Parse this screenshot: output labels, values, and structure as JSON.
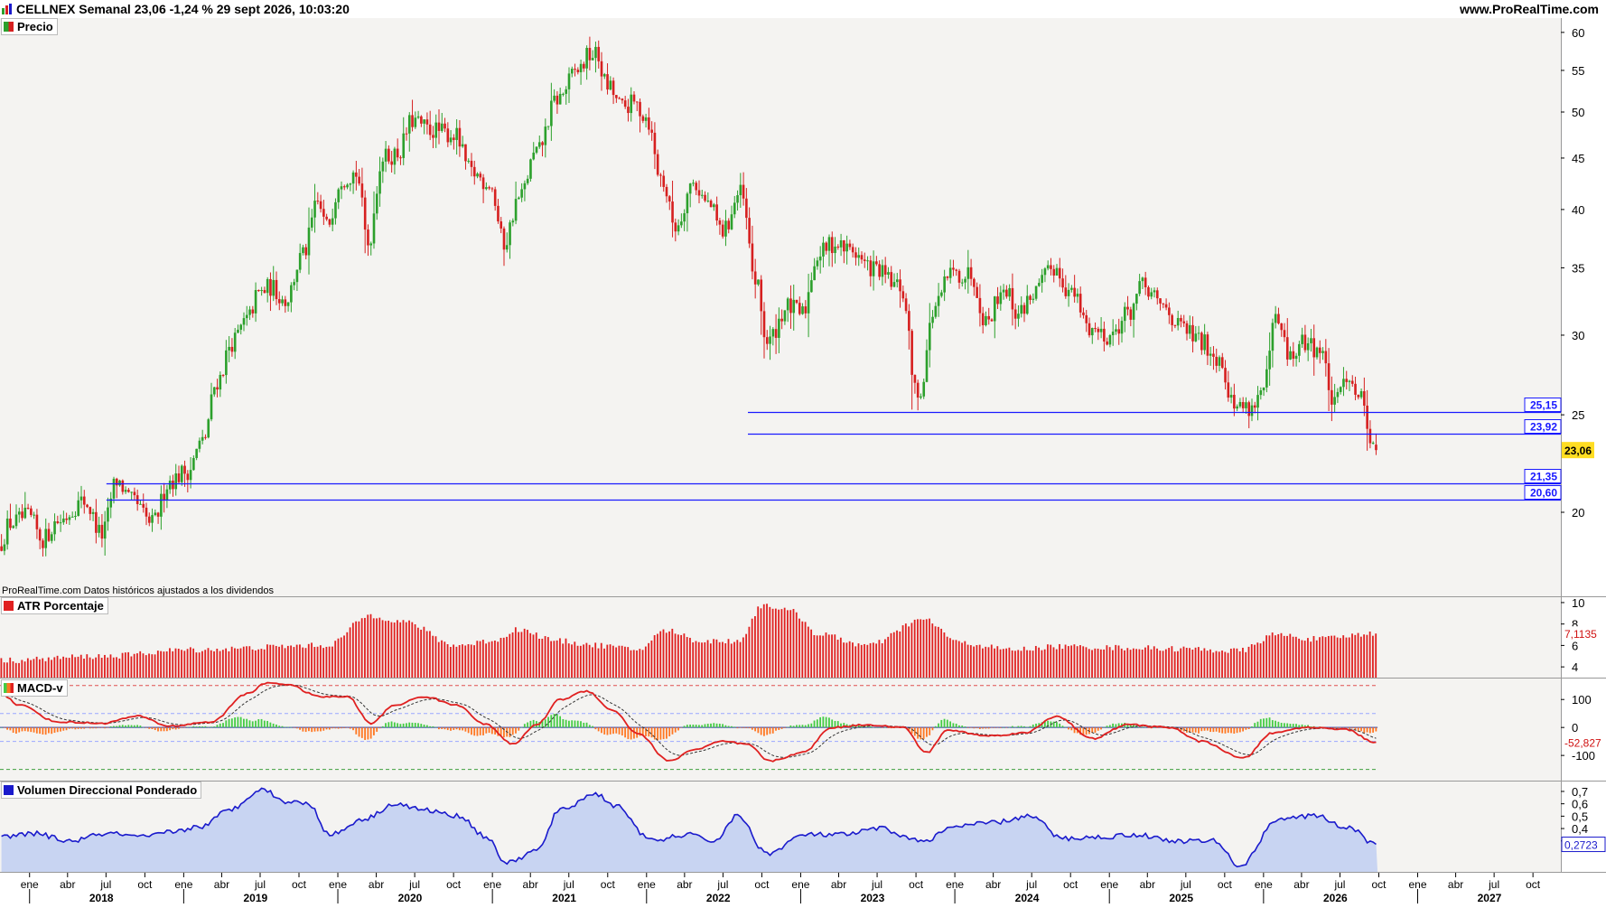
{
  "header": {
    "title": "CELLNEX Semanal 23,06 -1,24 % 29 sept 2026, 10:03:20",
    "site": "www.ProRealTime.com"
  },
  "source_note": "ProRealTime.com Datos históricos ajustados a los dividendos",
  "colors": {
    "up": "#2ca02c",
    "down": "#d62020",
    "level_line": "#1a1aff",
    "atr_bar": "#e02020",
    "macd_line": "#e02020",
    "signal_line": "#333333",
    "hist_pos": "#44cc44",
    "hist_neg": "#ff7722",
    "vdp_line": "#1a1acc",
    "vdp_fill": "#c8d4f2",
    "last_price_bg": "#ffdd22"
  },
  "chart_data": [
    {
      "panel": "price",
      "type": "candlestick",
      "title": "Precio",
      "y_scale": "log",
      "ylim": [
        16.5,
        62
      ],
      "y_ticks": [
        "60",
        "55",
        "50",
        "45",
        "40",
        "35",
        "30",
        "25",
        "20"
      ],
      "x_month_labels": [
        "ene",
        "abr",
        "jul",
        "oct",
        "ene",
        "abr",
        "jul",
        "oct",
        "ene",
        "abr",
        "jul",
        "oct",
        "ene",
        "abr",
        "jul",
        "oct",
        "ene",
        "abr",
        "jul",
        "oct",
        "ene",
        "abr",
        "jul",
        "oct",
        "ene",
        "abr",
        "jul",
        "oct",
        "ene",
        "abr",
        "jul",
        "oct",
        "ene",
        "abr",
        "jul",
        "oct",
        "ene",
        "abr",
        "jul",
        "oct"
      ],
      "x_year_labels": [
        "2018",
        "2019",
        "2020",
        "2021",
        "2022",
        "2023",
        "2024",
        "2025",
        "2026",
        "2027"
      ],
      "anchors": [
        [
          "2017-10-23",
          18.5
        ],
        [
          "2017-11-20",
          19.5
        ],
        [
          "2018-01-01",
          19.8
        ],
        [
          "2018-02-05",
          18.8
        ],
        [
          "2018-03-12",
          19.6
        ],
        [
          "2018-05-14",
          20.5
        ],
        [
          "2018-06-25",
          19.0
        ],
        [
          "2018-07-30",
          21.5
        ],
        [
          "2018-09-03",
          20.5
        ],
        [
          "2018-10-22",
          19.5
        ],
        [
          "2018-12-03",
          21.5
        ],
        [
          "2019-01-14",
          22.0
        ],
        [
          "2019-02-18",
          23.5
        ],
        [
          "2019-03-25",
          27.0
        ],
        [
          "2019-04-29",
          29.5
        ],
        [
          "2019-06-03",
          31.0
        ],
        [
          "2019-07-01",
          33.0
        ],
        [
          "2019-07-29",
          33.5
        ],
        [
          "2019-09-02",
          32.5
        ],
        [
          "2019-10-14",
          36.0
        ],
        [
          "2019-11-18",
          40.5
        ],
        [
          "2019-12-09",
          38.5
        ],
        [
          "2020-01-13",
          43.0
        ],
        [
          "2020-02-17",
          43.5
        ],
        [
          "2020-03-16",
          37.0
        ],
        [
          "2020-04-20",
          45.0
        ],
        [
          "2020-05-25",
          45.5
        ],
        [
          "2020-06-29",
          49.0
        ],
        [
          "2020-08-10",
          48.0
        ],
        [
          "2020-10-05",
          47.5
        ],
        [
          "2020-11-16",
          43.5
        ],
        [
          "2020-12-28",
          42.5
        ],
        [
          "2021-02-01",
          37.0
        ],
        [
          "2021-03-08",
          41.0
        ],
        [
          "2021-04-19",
          45.5
        ],
        [
          "2021-06-07",
          51.5
        ],
        [
          "2021-07-26",
          55.0
        ],
        [
          "2021-08-23",
          57.0
        ],
        [
          "2021-09-06",
          57.0
        ],
        [
          "2021-10-04",
          53.0
        ],
        [
          "2021-11-08",
          50.5
        ],
        [
          "2021-12-06",
          51.0
        ],
        [
          "2022-01-03",
          49.5
        ],
        [
          "2022-02-07",
          43.0
        ],
        [
          "2022-03-14",
          38.5
        ],
        [
          "2022-04-25",
          42.5
        ],
        [
          "2022-05-30",
          40.5
        ],
        [
          "2022-07-04",
          38.0
        ],
        [
          "2022-08-15",
          41.5
        ],
        [
          "2022-09-19",
          34.0
        ],
        [
          "2022-10-17",
          29.5
        ],
        [
          "2022-12-05",
          32.0
        ],
        [
          "2023-01-09",
          31.5
        ],
        [
          "2023-02-13",
          36.0
        ],
        [
          "2023-03-20",
          37.0
        ],
        [
          "2023-05-01",
          36.5
        ],
        [
          "2023-06-19",
          35.0
        ],
        [
          "2023-08-28",
          33.5
        ],
        [
          "2023-10-09",
          26.0
        ],
        [
          "2023-11-20",
          32.0
        ],
        [
          "2023-12-25",
          34.5
        ],
        [
          "2024-02-12",
          34.5
        ],
        [
          "2024-03-18",
          31.0
        ],
        [
          "2024-04-29",
          33.5
        ],
        [
          "2024-06-03",
          31.5
        ],
        [
          "2024-07-08",
          33.0
        ],
        [
          "2024-08-26",
          35.0
        ],
        [
          "2024-10-07",
          33.0
        ],
        [
          "2024-11-18",
          30.5
        ],
        [
          "2025-01-06",
          30.0
        ],
        [
          "2025-02-17",
          31.5
        ],
        [
          "2025-03-24",
          33.5
        ],
        [
          "2025-05-12",
          32.0
        ],
        [
          "2025-06-23",
          30.5
        ],
        [
          "2025-08-11",
          29.5
        ],
        [
          "2025-09-22",
          28.5
        ],
        [
          "2025-10-27",
          25.5
        ],
        [
          "2025-12-08",
          25.5
        ],
        [
          "2026-01-05",
          26.5
        ],
        [
          "2026-02-02",
          31.0
        ],
        [
          "2026-03-09",
          28.5
        ],
        [
          "2026-04-13",
          29.5
        ],
        [
          "2026-05-18",
          29.0
        ],
        [
          "2026-06-22",
          25.5
        ],
        [
          "2026-07-20",
          27.5
        ],
        [
          "2026-08-24",
          26.0
        ],
        [
          "2026-09-21",
          23.35
        ]
      ],
      "last_candle": {
        "open": 23.35,
        "high": 23.95,
        "low": 22.8,
        "close": 23.06
      },
      "price_levels": [
        {
          "value": 25.15,
          "label": "25,15",
          "from": "2022-08-29"
        },
        {
          "value": 23.92,
          "label": "23,92",
          "from": "2022-08-29"
        },
        {
          "value": 21.35,
          "label": "21,35",
          "from": "2018-07-02"
        },
        {
          "value": 20.6,
          "label": "20,60",
          "from": "2018-07-02"
        }
      ],
      "last_label": "23,06"
    },
    {
      "panel": "atr",
      "type": "bar",
      "title": "ATR Porcentaje",
      "ylim": [
        3,
        10.5
      ],
      "y_ticks": [
        "10",
        "8",
        "6",
        "4"
      ],
      "anchors": [
        [
          "2017-10-23",
          4.6
        ],
        [
          "2018-06-25",
          5.0
        ],
        [
          "2019-01-14",
          5.6
        ],
        [
          "2019-12-02",
          6.0
        ],
        [
          "2020-03-16",
          8.8
        ],
        [
          "2020-06-01",
          8.2
        ],
        [
          "2020-10-05",
          6.0
        ],
        [
          "2021-01-11",
          6.5
        ],
        [
          "2021-02-22",
          7.5
        ],
        [
          "2021-06-07",
          6.4
        ],
        [
          "2021-09-06",
          6.0
        ],
        [
          "2021-12-06",
          5.6
        ],
        [
          "2022-02-14",
          7.4
        ],
        [
          "2022-05-09",
          6.4
        ],
        [
          "2022-08-01",
          6.4
        ],
        [
          "2022-10-03",
          9.8
        ],
        [
          "2022-12-05",
          9.2
        ],
        [
          "2023-02-13",
          7.0
        ],
        [
          "2023-06-05",
          6.0
        ],
        [
          "2023-10-16",
          8.4
        ],
        [
          "2024-01-15",
          6.2
        ],
        [
          "2024-05-13",
          5.6
        ],
        [
          "2024-09-02",
          5.9
        ],
        [
          "2025-01-13",
          5.8
        ],
        [
          "2025-06-02",
          5.7
        ],
        [
          "2025-11-03",
          5.5
        ],
        [
          "2026-01-26",
          7.0
        ],
        [
          "2026-05-04",
          6.6
        ],
        [
          "2026-09-21",
          7.11
        ]
      ],
      "last_label": "7,1135"
    },
    {
      "panel": "macd",
      "type": "line",
      "title": "MACD-v",
      "ylim": [
        -190,
        175
      ],
      "y_ticks": [
        "100",
        "0",
        "-100"
      ],
      "levels": {
        "upper": 150,
        "lower": -150,
        "band_hi": 50,
        "band_lo": -50
      },
      "anchors": [
        [
          "2017-10-23",
          120
        ],
        [
          "2017-12-04",
          80
        ],
        [
          "2018-03-05",
          20
        ],
        [
          "2018-06-18",
          15
        ],
        [
          "2018-09-10",
          40
        ],
        [
          "2018-11-26",
          5
        ],
        [
          "2019-03-04",
          20
        ],
        [
          "2019-05-27",
          120
        ],
        [
          "2019-07-15",
          160
        ],
        [
          "2019-08-26",
          155
        ],
        [
          "2019-11-18",
          110
        ],
        [
          "2020-01-20",
          110
        ],
        [
          "2020-03-16",
          15
        ],
        [
          "2020-05-11",
          80
        ],
        [
          "2020-07-20",
          110
        ],
        [
          "2020-10-05",
          80
        ],
        [
          "2020-12-14",
          10
        ],
        [
          "2021-02-15",
          -60
        ],
        [
          "2021-04-12",
          10
        ],
        [
          "2021-06-07",
          100
        ],
        [
          "2021-08-09",
          130
        ],
        [
          "2021-10-11",
          60
        ],
        [
          "2021-12-06",
          -20
        ],
        [
          "2022-02-21",
          -120
        ],
        [
          "2022-04-18",
          -80
        ],
        [
          "2022-06-27",
          -50
        ],
        [
          "2022-08-22",
          -60
        ],
        [
          "2022-10-17",
          -120
        ],
        [
          "2023-01-02",
          -90
        ],
        [
          "2023-03-13",
          0
        ],
        [
          "2023-06-05",
          10
        ],
        [
          "2023-08-28",
          0
        ],
        [
          "2023-10-23",
          -90
        ],
        [
          "2023-12-11",
          -10
        ],
        [
          "2024-03-18",
          -30
        ],
        [
          "2024-06-10",
          -20
        ],
        [
          "2024-08-26",
          40
        ],
        [
          "2024-11-18",
          -40
        ],
        [
          "2025-02-10",
          10
        ],
        [
          "2025-05-19",
          0
        ],
        [
          "2025-08-04",
          -50
        ],
        [
          "2025-11-10",
          -110
        ],
        [
          "2026-01-19",
          -20
        ],
        [
          "2026-04-06",
          0
        ],
        [
          "2026-07-06",
          -5
        ],
        [
          "2026-09-21",
          -52.827
        ]
      ],
      "last_label": "-52,827"
    },
    {
      "panel": "vdp",
      "type": "area",
      "title": "Volumen Direccional Ponderado",
      "ylim": [
        0.05,
        0.78
      ],
      "y_ticks": [
        "0,7",
        "0,6",
        "0,5",
        "0,4",
        "0,3"
      ],
      "anchors": [
        [
          "2017-10-23",
          0.33
        ],
        [
          "2018-01-08",
          0.36
        ],
        [
          "2018-04-02",
          0.3
        ],
        [
          "2018-07-02",
          0.36
        ],
        [
          "2018-09-24",
          0.33
        ],
        [
          "2018-12-10",
          0.38
        ],
        [
          "2019-02-11",
          0.42
        ],
        [
          "2019-04-15",
          0.55
        ],
        [
          "2019-07-01",
          0.72
        ],
        [
          "2019-08-26",
          0.62
        ],
        [
          "2019-10-21",
          0.6
        ],
        [
          "2019-12-09",
          0.35
        ],
        [
          "2020-03-02",
          0.48
        ],
        [
          "2020-05-11",
          0.6
        ],
        [
          "2020-07-20",
          0.55
        ],
        [
          "2020-10-12",
          0.5
        ],
        [
          "2020-12-14",
          0.33
        ],
        [
          "2021-02-01",
          0.12
        ],
        [
          "2021-04-12",
          0.22
        ],
        [
          "2021-06-07",
          0.55
        ],
        [
          "2021-08-30",
          0.68
        ],
        [
          "2021-10-18",
          0.58
        ],
        [
          "2022-01-10",
          0.3
        ],
        [
          "2022-04-04",
          0.35
        ],
        [
          "2022-06-06",
          0.3
        ],
        [
          "2022-08-01",
          0.5
        ],
        [
          "2022-10-10",
          0.2
        ],
        [
          "2023-01-09",
          0.35
        ],
        [
          "2023-04-10",
          0.35
        ],
        [
          "2023-07-03",
          0.4
        ],
        [
          "2023-10-09",
          0.3
        ],
        [
          "2024-01-08",
          0.42
        ],
        [
          "2024-04-01",
          0.45
        ],
        [
          "2024-06-24",
          0.5
        ],
        [
          "2024-09-09",
          0.32
        ],
        [
          "2024-12-02",
          0.33
        ],
        [
          "2025-03-03",
          0.35
        ],
        [
          "2025-06-02",
          0.3
        ],
        [
          "2025-09-01",
          0.3
        ],
        [
          "2025-11-03",
          0.1
        ],
        [
          "2026-02-02",
          0.48
        ],
        [
          "2026-05-04",
          0.5
        ],
        [
          "2026-07-20",
          0.4
        ],
        [
          "2026-09-21",
          0.2723
        ]
      ],
      "last_label": "0,2723"
    }
  ]
}
